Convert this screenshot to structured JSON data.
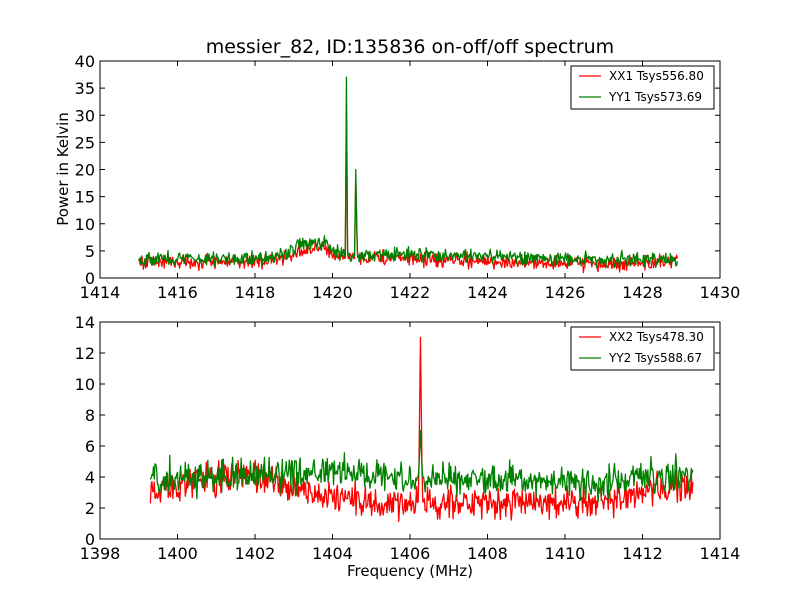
{
  "chart_data": [
    {
      "type": "line",
      "title": "messier_82, ID:135836 on-off/off spectrum",
      "xlabel": "",
      "ylabel": "Power in Kelvin",
      "xlim": [
        1414,
        1430
      ],
      "ylim": [
        0,
        40
      ],
      "xticks": [
        1414,
        1416,
        1418,
        1420,
        1422,
        1424,
        1426,
        1428,
        1430
      ],
      "yticks": [
        0,
        5,
        10,
        15,
        20,
        25,
        30,
        35,
        40
      ],
      "grid": false,
      "legend": "top-right",
      "x_range": [
        1415.0,
        1428.9
      ],
      "noise_amplitude": [
        1.0,
        1.0
      ],
      "series": [
        {
          "name": "XX1 Tsys556.80",
          "color": "#ff0000",
          "profile": [
            [
              1415.0,
              3.0
            ],
            [
              1416.0,
              3.0
            ],
            [
              1418.0,
              3.0
            ],
            [
              1418.6,
              3.5
            ],
            [
              1419.2,
              5.0
            ],
            [
              1419.8,
              5.5
            ],
            [
              1420.2,
              4.0
            ],
            [
              1420.33,
              3.6
            ],
            [
              1420.36,
              32.0
            ],
            [
              1420.39,
              3.6
            ],
            [
              1420.57,
              3.6
            ],
            [
              1420.6,
              19.0
            ],
            [
              1420.64,
              3.8
            ],
            [
              1421.0,
              3.8
            ],
            [
              1422.0,
              3.5
            ],
            [
              1424.0,
              3.0
            ],
            [
              1426.0,
              2.8
            ],
            [
              1427.0,
              2.6
            ],
            [
              1428.9,
              3.0
            ]
          ]
        },
        {
          "name": "YY1 Tsys573.69",
          "color": "#008000",
          "profile": [
            [
              1415.0,
              3.5
            ],
            [
              1416.0,
              3.6
            ],
            [
              1418.0,
              3.6
            ],
            [
              1418.6,
              4.2
            ],
            [
              1419.2,
              6.0
            ],
            [
              1419.8,
              6.5
            ],
            [
              1420.2,
              4.8
            ],
            [
              1420.33,
              4.0
            ],
            [
              1420.36,
              37.0
            ],
            [
              1420.39,
              4.0
            ],
            [
              1420.57,
              4.0
            ],
            [
              1420.6,
              20.0
            ],
            [
              1420.64,
              4.2
            ],
            [
              1421.0,
              4.2
            ],
            [
              1422.0,
              4.3
            ],
            [
              1424.0,
              4.0
            ],
            [
              1426.0,
              3.5
            ],
            [
              1427.0,
              3.3
            ],
            [
              1428.9,
              3.5
            ]
          ]
        }
      ]
    },
    {
      "type": "line",
      "title": "",
      "xlabel": "Frequency (MHz)",
      "ylabel": "",
      "xlim": [
        1398,
        1414
      ],
      "ylim": [
        0,
        14
      ],
      "xticks": [
        1398,
        1400,
        1402,
        1404,
        1406,
        1408,
        1410,
        1412,
        1414
      ],
      "yticks": [
        0,
        2,
        4,
        6,
        8,
        10,
        12,
        14
      ],
      "grid": false,
      "legend": "top-right",
      "x_range": [
        1399.3,
        1413.3
      ],
      "noise_amplitude": [
        0.8,
        0.8
      ],
      "series": [
        {
          "name": "XX2 Tsys478.30",
          "color": "#ff0000",
          "profile": [
            [
              1399.3,
              3.2
            ],
            [
              1400.0,
              3.5
            ],
            [
              1401.0,
              4.0
            ],
            [
              1402.0,
              4.0
            ],
            [
              1403.0,
              3.2
            ],
            [
              1404.0,
              2.8
            ],
            [
              1405.0,
              2.2
            ],
            [
              1406.0,
              2.0
            ],
            [
              1406.22,
              2.4
            ],
            [
              1406.27,
              13.0
            ],
            [
              1406.32,
              2.4
            ],
            [
              1407.0,
              2.3
            ],
            [
              1408.0,
              2.3
            ],
            [
              1409.0,
              2.4
            ],
            [
              1410.0,
              2.3
            ],
            [
              1411.0,
              2.5
            ],
            [
              1412.0,
              3.0
            ],
            [
              1413.3,
              3.2
            ]
          ]
        },
        {
          "name": "YY2 Tsys588.67",
          "color": "#008000",
          "profile": [
            [
              1399.3,
              4.0
            ],
            [
              1400.0,
              4.0
            ],
            [
              1401.0,
              4.0
            ],
            [
              1402.0,
              4.0
            ],
            [
              1403.0,
              4.2
            ],
            [
              1404.0,
              4.3
            ],
            [
              1405.0,
              4.2
            ],
            [
              1406.0,
              4.0
            ],
            [
              1406.22,
              4.0
            ],
            [
              1406.27,
              7.0
            ],
            [
              1406.32,
              4.0
            ],
            [
              1407.0,
              3.9
            ],
            [
              1408.0,
              3.8
            ],
            [
              1409.0,
              3.8
            ],
            [
              1410.0,
              3.7
            ],
            [
              1411.0,
              3.6
            ],
            [
              1412.0,
              4.0
            ],
            [
              1413.3,
              4.2
            ]
          ]
        }
      ]
    }
  ]
}
